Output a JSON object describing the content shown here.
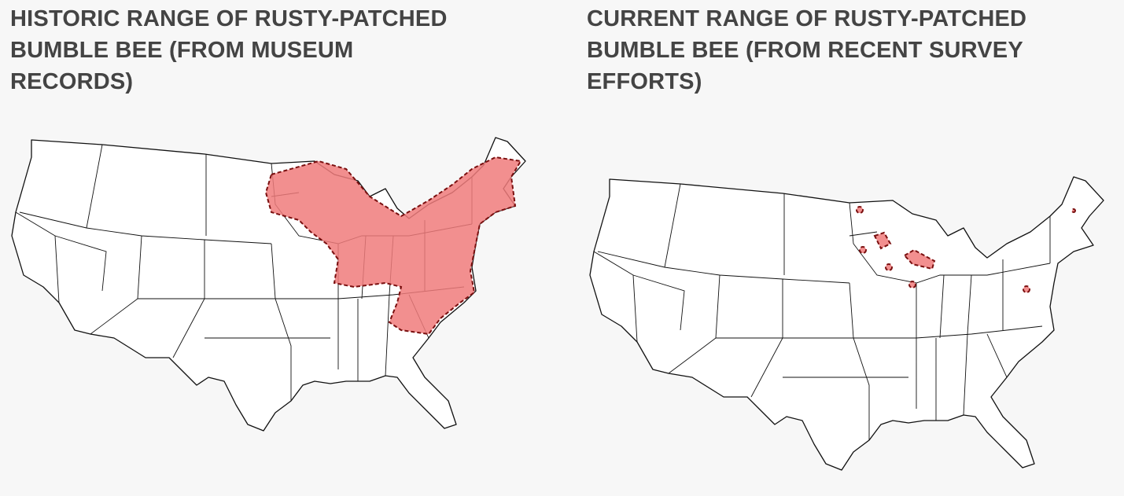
{
  "panels": [
    {
      "title": "HISTORIC RANGE OF RUSTY-PATCHED BUMBLE BEE (FROM MUSEUM RECORDS)"
    },
    {
      "title": "CURRENT RANGE OF RUSTY-PATCHED BUMBLE BEE (FROM RECENT SURVEY EFFORTS)"
    }
  ]
}
